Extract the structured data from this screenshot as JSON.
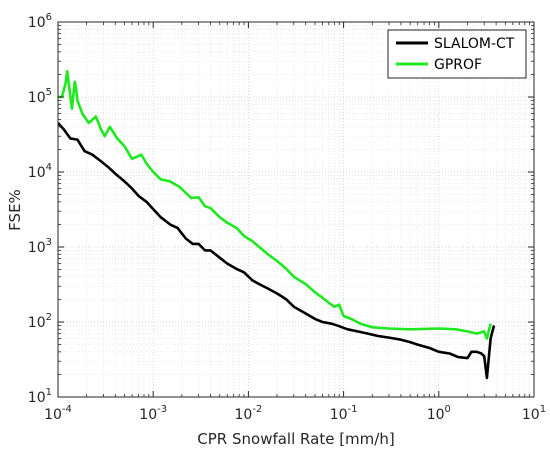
{
  "chart_data": {
    "type": "line",
    "title": "",
    "xlabel": "CPR Snowfall Rate [mm/h]",
    "ylabel": "FSE%",
    "xscale": "log",
    "yscale": "log",
    "xlim": [
      0.0001,
      10
    ],
    "ylim": [
      10,
      1000000
    ],
    "grid": true,
    "legend_position": "top-right",
    "x_ticks": [
      {
        "value": 0.0001,
        "base": "10",
        "exp": "-4"
      },
      {
        "value": 0.001,
        "base": "10",
        "exp": "-3"
      },
      {
        "value": 0.01,
        "base": "10",
        "exp": "-2"
      },
      {
        "value": 0.1,
        "base": "10",
        "exp": "-1"
      },
      {
        "value": 1,
        "base": "10",
        "exp": "0"
      },
      {
        "value": 10,
        "base": "10",
        "exp": "1"
      }
    ],
    "y_ticks": [
      {
        "value": 10,
        "base": "10",
        "exp": "1"
      },
      {
        "value": 100,
        "base": "10",
        "exp": "2"
      },
      {
        "value": 1000,
        "base": "10",
        "exp": "3"
      },
      {
        "value": 10000,
        "base": "10",
        "exp": "4"
      },
      {
        "value": 100000,
        "base": "10",
        "exp": "5"
      },
      {
        "value": 1000000,
        "base": "10",
        "exp": "6"
      }
    ],
    "series": [
      {
        "name": "SLALOM-CT",
        "color": "#000000",
        "x": [
          0.0001,
          0.000115,
          0.000135,
          0.00016,
          0.00019,
          0.00023,
          0.00028,
          0.00034,
          0.0004,
          0.0005,
          0.0006,
          0.0007,
          0.00085,
          0.001,
          0.0012,
          0.0015,
          0.0018,
          0.0022,
          0.0026,
          0.003,
          0.0035,
          0.004,
          0.005,
          0.006,
          0.0075,
          0.009,
          0.011,
          0.013,
          0.016,
          0.02,
          0.025,
          0.03,
          0.04,
          0.05,
          0.06,
          0.075,
          0.09,
          0.11,
          0.14,
          0.18,
          0.23,
          0.3,
          0.4,
          0.5,
          0.6,
          0.8,
          1.0,
          1.3,
          1.6,
          2.0,
          2.2,
          2.5,
          2.8,
          3.0,
          3.2,
          3.5,
          3.8
        ],
        "y": [
          45000,
          37000,
          28000,
          27000,
          19000,
          17000,
          14000,
          11500,
          9500,
          7500,
          6000,
          4800,
          4000,
          3200,
          2500,
          2000,
          1800,
          1300,
          1100,
          1100,
          900,
          900,
          720,
          600,
          510,
          460,
          360,
          320,
          280,
          240,
          200,
          160,
          130,
          110,
          100,
          95,
          88,
          80,
          75,
          70,
          65,
          62,
          58,
          54,
          50,
          45,
          40,
          38,
          34,
          33,
          40,
          40,
          38,
          35,
          18,
          60,
          90
        ]
      },
      {
        "name": "GPROF",
        "color": "#1ee81e",
        "x": [
          0.0001,
          0.00011,
          0.00012,
          0.000125,
          0.00013,
          0.00014,
          0.00015,
          0.000155,
          0.00016,
          0.00018,
          0.00021,
          0.00025,
          0.00028,
          0.00031,
          0.00035,
          0.00042,
          0.0005,
          0.0006,
          0.00075,
          0.00085,
          0.001,
          0.0012,
          0.0015,
          0.0019,
          0.0025,
          0.003,
          0.0035,
          0.004,
          0.005,
          0.006,
          0.0075,
          0.009,
          0.011,
          0.013,
          0.016,
          0.02,
          0.025,
          0.03,
          0.04,
          0.05,
          0.06,
          0.07,
          0.08,
          0.09,
          0.1,
          0.12,
          0.15,
          0.2,
          0.3,
          0.5,
          1.0,
          1.5,
          2.0,
          2.5,
          3.0,
          3.2,
          3.5
        ],
        "y": [
          100000,
          100000,
          150000,
          220000,
          150000,
          70000,
          160000,
          130000,
          90000,
          60000,
          45000,
          55000,
          38000,
          30000,
          40000,
          28000,
          22000,
          15000,
          17000,
          13000,
          10000,
          8000,
          7500,
          6300,
          4500,
          4600,
          3500,
          3300,
          2500,
          2100,
          1800,
          1400,
          1200,
          1000,
          800,
          650,
          510,
          400,
          320,
          250,
          210,
          180,
          160,
          170,
          120,
          110,
          95,
          85,
          82,
          80,
          82,
          80,
          75,
          70,
          75,
          60,
          95
        ]
      }
    ]
  }
}
